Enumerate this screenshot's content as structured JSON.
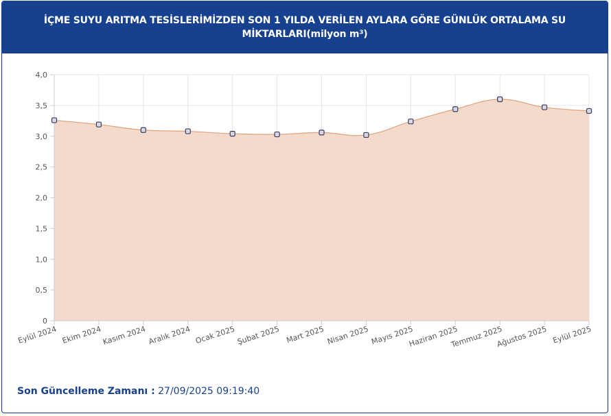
{
  "header": {
    "title": "İÇME SUYU ARITMA TESİSLERİMİZDEN SON 1 YILDA VERİLEN AYLARA GÖRE GÜNLÜK ORTALAMA SU MİKTARLARI(milyon m³)"
  },
  "footer": {
    "label": "Son Güncelleme Zamanı :",
    "value": "27/09/2025 09:19:40"
  },
  "colors": {
    "header_bg": "#17418f",
    "area_fill": "#f2d8c8",
    "line": "#e0a07a",
    "marker_fill": "#d9d9e6",
    "marker_stroke": "#3a3a5a",
    "grid": "#e6e6e6"
  },
  "chart_data": {
    "type": "area",
    "categories": [
      "Eylül 2024",
      "Ekim 2024",
      "Kasım 2024",
      "Aralık 2024",
      "Ocak 2025",
      "Şubat 2025",
      "Mart 2025",
      "Nisan 2025",
      "Mayıs 2025",
      "Haziran 2025",
      "Temmuz 2025",
      "Ağustos 2025",
      "Eylül 2025"
    ],
    "series": [
      {
        "values": [
          3.26,
          3.19,
          3.1,
          3.08,
          3.04,
          3.03,
          3.06,
          3.02,
          3.24,
          3.44,
          3.6,
          3.47,
          3.41
        ]
      }
    ],
    "ylim": [
      0,
      4
    ],
    "y_ticks": [
      "0",
      "0,5",
      "1,0",
      "1,5",
      "2,0",
      "2,5",
      "3,0",
      "3,5",
      "4,0"
    ],
    "y_tick_values": [
      0,
      0.5,
      1,
      1.5,
      2,
      2.5,
      3,
      3.5,
      4
    ],
    "grid": true,
    "smooth": true,
    "xlabel": "",
    "ylabel": ""
  }
}
